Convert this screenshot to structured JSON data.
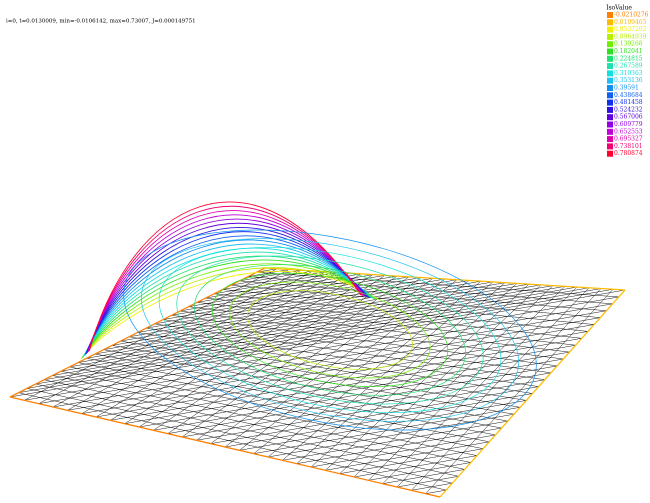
{
  "header": {
    "text": "i=0, t=0.0130009, min=-0.0106142, max=0.73007, J=0.000149751"
  },
  "legend": {
    "title": "IsoValue",
    "entries": [
      {
        "label": "-0.0210276",
        "color": "#ff8000"
      },
      {
        "label": "0.0109465",
        "color": "#ffbb00"
      },
      {
        "label": "0.0537202",
        "color": "#f0f000"
      },
      {
        "label": "0.0964939",
        "color": "#b8f000"
      },
      {
        "label": "0.139268",
        "color": "#70f000"
      },
      {
        "label": "0.182041",
        "color": "#30e020"
      },
      {
        "label": "0.224815",
        "color": "#20e070"
      },
      {
        "label": "0.267589",
        "color": "#20e0b0"
      },
      {
        "label": "0.310363",
        "color": "#10e0e0"
      },
      {
        "label": "0.353136",
        "color": "#20c0f0"
      },
      {
        "label": "0.39591",
        "color": "#1090f0"
      },
      {
        "label": "0.438684",
        "color": "#1060f0"
      },
      {
        "label": "0.481458",
        "color": "#1030f0"
      },
      {
        "label": "0.524232",
        "color": "#3010e0"
      },
      {
        "label": "0.567006",
        "color": "#6000e0"
      },
      {
        "label": "0.609779",
        "color": "#9000e0"
      },
      {
        "label": "0.652553",
        "color": "#c000d8"
      },
      {
        "label": "0.695327",
        "color": "#e000b0"
      },
      {
        "label": "0.738101",
        "color": "#f00070"
      },
      {
        "label": "0.780874",
        "color": "#ff0030"
      }
    ]
  }
}
